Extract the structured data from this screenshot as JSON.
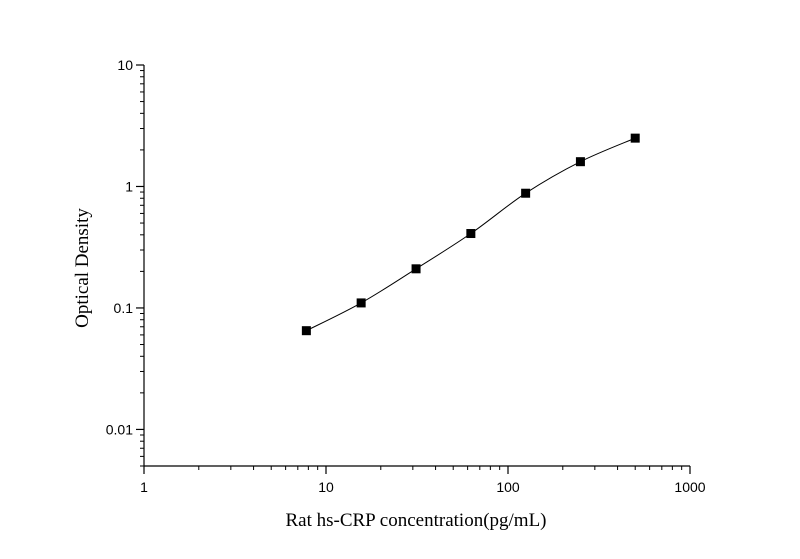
{
  "chart_data": {
    "type": "scatter",
    "title": "",
    "xlabel": "Rat hs-CRP concentration(pg/mL)",
    "ylabel": "Optical Density",
    "x_scale": "log",
    "y_scale": "log",
    "xlim": [
      1,
      1000
    ],
    "ylim": [
      0.005,
      10
    ],
    "x_ticks": [
      1,
      10,
      100,
      1000
    ],
    "x_tick_labels": [
      "1",
      "10",
      "100",
      "1000"
    ],
    "y_ticks": [
      0.01,
      0.1,
      1,
      10
    ],
    "y_tick_labels": [
      "0.01",
      "0.1",
      "1",
      "10"
    ],
    "grid": false,
    "legend": "none",
    "series": [
      {
        "x": [
          7.8,
          15.6,
          31.25,
          62.5,
          125,
          250,
          500
        ],
        "y": [
          0.065,
          0.11,
          0.21,
          0.41,
          0.88,
          1.6,
          2.5
        ],
        "marker": "square",
        "fit_curve": true,
        "color": "#000000"
      }
    ]
  }
}
